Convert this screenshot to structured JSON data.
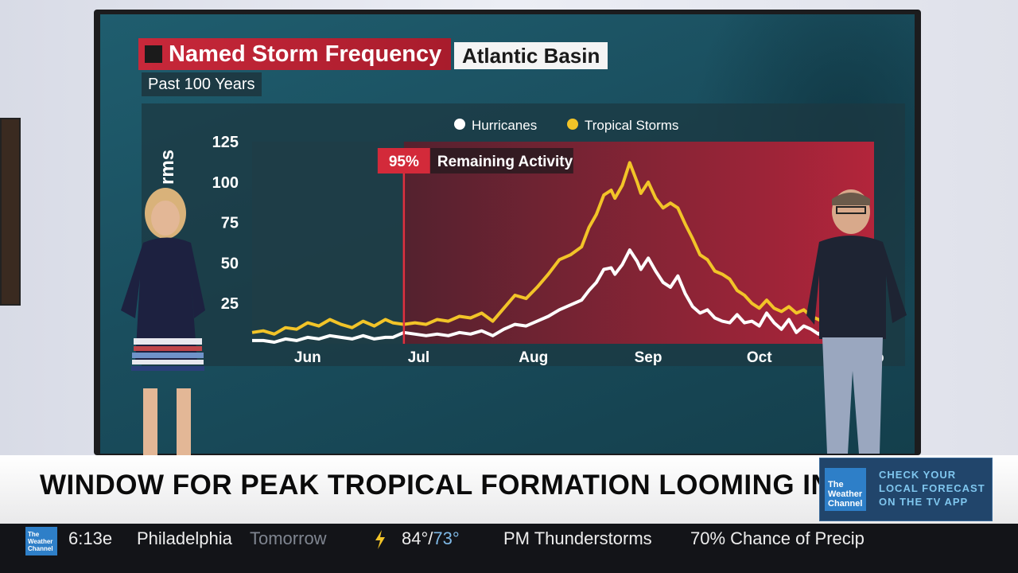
{
  "graphic": {
    "title": "Named Storm Frequency",
    "region": "Atlantic Basin",
    "subtitle": "Past 100 Years",
    "ylabel_partial": "rms",
    "marker": {
      "percent": "95%",
      "label": "Remaining Activity"
    },
    "colors": {
      "hurricanes": "#ffffff",
      "tropical_storms": "#f2c428",
      "remaining_shade": "#c0233a",
      "title_red": "#c8283a"
    }
  },
  "chart_data": {
    "type": "line",
    "title": "Named Storm Frequency",
    "ylim": [
      0,
      125
    ],
    "yticks": [
      25,
      50,
      75,
      100,
      125
    ],
    "xlim": [
      0,
      168
    ],
    "xticks": [
      {
        "label": "Jun",
        "x": 15
      },
      {
        "label": "Jul",
        "x": 45
      },
      {
        "label": "Aug",
        "x": 76
      },
      {
        "label": "Sep",
        "x": 107
      },
      {
        "label": "Oct",
        "x": 137
      },
      {
        "label": "No",
        "x": 168
      }
    ],
    "marker_x": 41,
    "legend": {
      "position": "top-center",
      "entries": [
        "Hurricanes",
        "Tropical Storms"
      ]
    },
    "series": [
      {
        "name": "Tropical Storms",
        "x": [
          0,
          3,
          6,
          9,
          12,
          15,
          18,
          21,
          24,
          27,
          30,
          33,
          36,
          38,
          41,
          44,
          47,
          50,
          53,
          56,
          59,
          62,
          65,
          68,
          71,
          74,
          77,
          80,
          83,
          86,
          89,
          91,
          93,
          95,
          97,
          98,
          100,
          102,
          104,
          105,
          107,
          109,
          111,
          113,
          115,
          117,
          119,
          121,
          123,
          125,
          127,
          129,
          131,
          133,
          135,
          137,
          139,
          141,
          143,
          145,
          147,
          149,
          151,
          153,
          155,
          157,
          159,
          161,
          163,
          165,
          167,
          168
        ],
        "values": [
          7,
          8,
          6,
          10,
          9,
          13,
          11,
          15,
          12,
          10,
          14,
          11,
          15,
          13,
          12,
          13,
          12,
          15,
          14,
          17,
          16,
          19,
          14,
          22,
          30,
          28,
          35,
          43,
          52,
          55,
          60,
          72,
          80,
          92,
          95,
          90,
          98,
          112,
          100,
          93,
          100,
          90,
          84,
          87,
          84,
          74,
          65,
          55,
          52,
          45,
          43,
          40,
          33,
          30,
          25,
          22,
          27,
          22,
          20,
          23,
          19,
          21,
          17,
          15,
          13,
          10,
          13,
          10,
          7,
          12,
          4,
          3
        ]
      },
      {
        "name": "Hurricanes",
        "x": [
          0,
          3,
          6,
          9,
          12,
          15,
          18,
          21,
          24,
          27,
          30,
          33,
          36,
          38,
          41,
          44,
          47,
          50,
          53,
          56,
          59,
          62,
          65,
          68,
          71,
          74,
          77,
          80,
          83,
          86,
          89,
          91,
          93,
          95,
          97,
          98,
          100,
          102,
          104,
          105,
          107,
          109,
          111,
          113,
          115,
          117,
          119,
          121,
          123,
          125,
          127,
          129,
          131,
          133,
          135,
          137,
          139,
          141,
          143,
          145,
          147,
          149,
          151,
          153,
          155,
          157,
          159,
          161,
          163,
          165,
          167,
          168
        ],
        "values": [
          2,
          2,
          1,
          3,
          2,
          4,
          3,
          5,
          4,
          3,
          5,
          3,
          4,
          4,
          7,
          6,
          5,
          6,
          5,
          7,
          6,
          8,
          5,
          9,
          12,
          11,
          14,
          17,
          21,
          24,
          27,
          33,
          38,
          46,
          47,
          43,
          49,
          58,
          51,
          46,
          53,
          45,
          38,
          35,
          42,
          31,
          23,
          19,
          21,
          16,
          14,
          13,
          18,
          13,
          14,
          11,
          19,
          13,
          9,
          15,
          7,
          11,
          9,
          6,
          10,
          5,
          7,
          4,
          2,
          3,
          1,
          1
        ]
      }
    ]
  },
  "ticker": {
    "headline": "WINDOW FOR PEAK TROPICAL FORMATION LOOMING IN ATLANTIC",
    "promo_lines": [
      "CHECK YOUR",
      "LOCAL FORECAST",
      "ON THE TV APP"
    ],
    "logo_lines": [
      "The",
      "Weather",
      "Channel"
    ]
  },
  "bottom_bar": {
    "time": "6:13e",
    "city": "Philadelphia",
    "period": "Tomorrow",
    "high": "84°/",
    "low": "73°",
    "conditions": "PM Thunderstorms",
    "precip": "70% Chance of Precip",
    "bolt_color": "#f2c428"
  }
}
